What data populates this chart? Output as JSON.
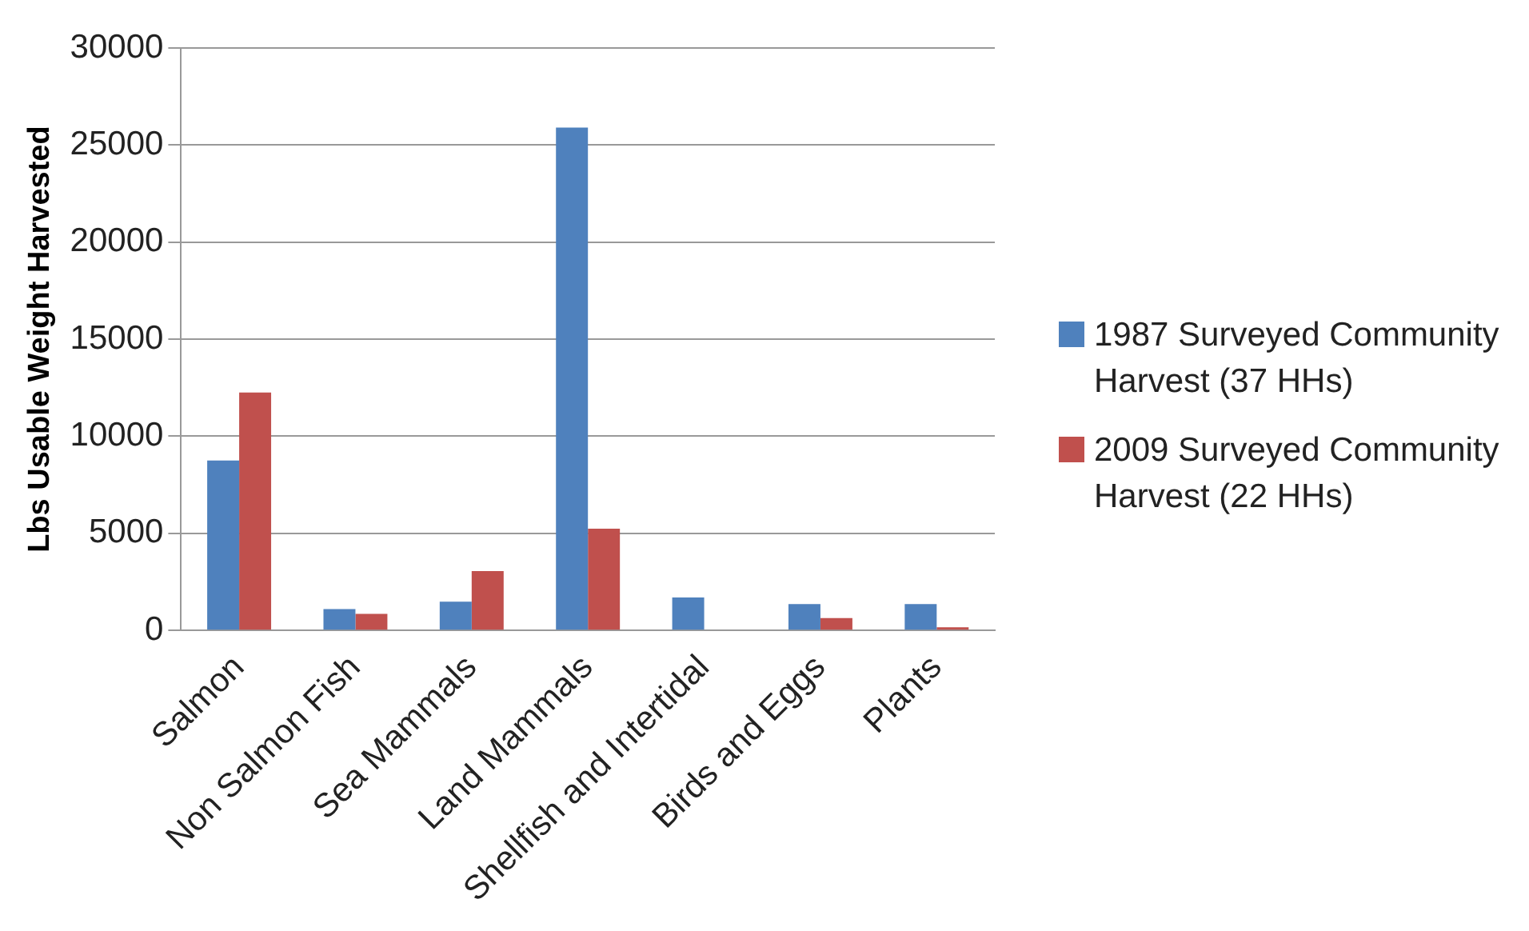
{
  "chart_data": {
    "type": "bar",
    "ylabel": "Lbs Usable Weight Harvested",
    "categories": [
      "Salmon",
      "Non Salmon Fish",
      "Sea Mammals",
      "Land Mammals",
      "Shellfish and Intertidal",
      "Birds and Eggs",
      "Plants"
    ],
    "series": [
      {
        "name": "1987 Surveyed Community Harvest (37 HHs)",
        "color": "#4f81bd",
        "values": [
          8750,
          1100,
          1480,
          25900,
          1700,
          1360,
          1360
        ]
      },
      {
        "name": "2009 Surveyed Community Harvest (22 HHs)",
        "color": "#c0504d",
        "values": [
          12250,
          850,
          3060,
          5240,
          0,
          630,
          160
        ]
      }
    ],
    "ylim": [
      0,
      30000
    ],
    "yticks": [
      0,
      5000,
      10000,
      15000,
      20000,
      25000,
      30000
    ],
    "grid": "y",
    "legend": "right"
  }
}
